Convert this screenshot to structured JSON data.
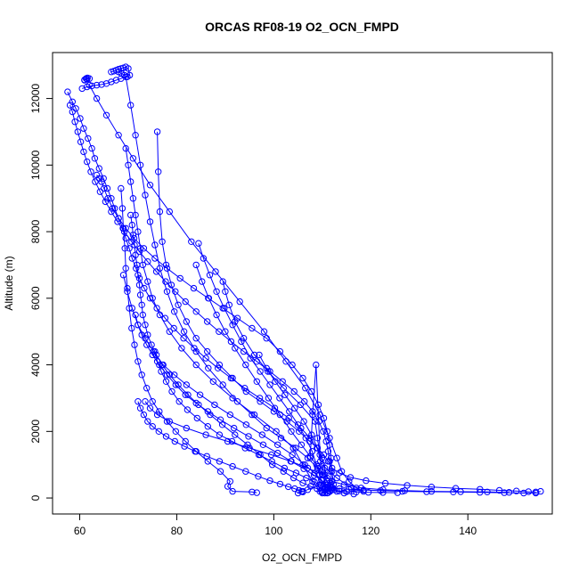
{
  "chart_data": {
    "type": "scatter",
    "title": "ORCAS RF08-19 O2_OCN_FMPD",
    "xlabel": "O2_OCN_FMPD",
    "ylabel": "Altitude (m)",
    "xlim": [
      54.4,
      157.4
    ],
    "ylim": [
      -480,
      13380
    ],
    "x_ticks": [
      60,
      80,
      100,
      120,
      140
    ],
    "y_ticks": [
      0,
      2000,
      4000,
      6000,
      8000,
      10000,
      12000
    ],
    "grid": false,
    "marker": "open-circle",
    "connect_points": true,
    "colors": {
      "series": "#0000ff",
      "axes": "#000000",
      "background": "#ffffff"
    },
    "series": [
      {
        "x": [
          57.5,
          58.5,
          59.2,
          60.1,
          60.8,
          61.7,
          62.5,
          63.1,
          64.0,
          64.9,
          65.7,
          66.5,
          67.2,
          68.0,
          68.9,
          69.5,
          70.2,
          70.8,
          71.6,
          72.3,
          73.3,
          74.5,
          75.9,
          77.6,
          79.4,
          81.4,
          83.6,
          86.0,
          88.5,
          91.2,
          94.0,
          97.1,
          100.2,
          103.1,
          105.6,
          107.5,
          108.9,
          109.9,
          110.5,
          111.0
        ],
        "y": [
          12200,
          11900,
          11700,
          11400,
          11100,
          10800,
          10500,
          10200,
          9900,
          9600,
          9300,
          9000,
          8700,
          8400,
          8100,
          7800,
          7500,
          7200,
          6900,
          6600,
          6300,
          6000,
          5700,
          5400,
          5100,
          4800,
          4500,
          4200,
          3900,
          3600,
          3300,
          3000,
          2700,
          2400,
          2100,
          1800,
          1500,
          1200,
          900,
          600
        ]
      },
      {
        "x": [
          110.2,
          111.0,
          112.0,
          113.5,
          115.5,
          118.5,
          122.0,
          126.5,
          131.5,
          137.0,
          142.5,
          147.5,
          151.5,
          154.0,
          155.0
        ],
        "y": [
          350,
          320,
          300,
          280,
          260,
          240,
          220,
          200,
          190,
          180,
          170,
          160,
          150,
          150,
          200
        ]
      },
      {
        "x": [
          73.5,
          74.5,
          76.0,
          78.5,
          82.0,
          86.0,
          90.5,
          95.0,
          99.5,
          103.5,
          107.0,
          110.0,
          112.0,
          111.0,
          112.0,
          110.5,
          111.5,
          110.0,
          111.2,
          110.0,
          111.0,
          110.5,
          109.5,
          108.0,
          106.0,
          104.0,
          100.5,
          96.0,
          91.5,
          87.5,
          84.0,
          81.0,
          78.5,
          76.5,
          75.0,
          74.0,
          73.0,
          72.5,
          72.0,
          71.5,
          71.0,
          70.5,
          70.0,
          69.5
        ],
        "y": [
          2900,
          2700,
          2500,
          2300,
          2100,
          1900,
          1700,
          1500,
          1300,
          1100,
          900,
          700,
          500,
          400,
          300,
          250,
          200,
          180,
          160,
          150,
          150,
          150,
          200,
          500,
          1000,
          1500,
          2000,
          2500,
          3000,
          3500,
          4000,
          4500,
          5000,
          5500,
          6000,
          6500,
          7000,
          7500,
          8000,
          8500,
          9000,
          9500,
          10000,
          10500
        ]
      },
      {
        "x": [
          62.0,
          63.5,
          65.5,
          68.0,
          71.0,
          74.5,
          78.5,
          83.0,
          88.0,
          93.0,
          98.0,
          102.5,
          106.5,
          109.5,
          111.5,
          113.0,
          114.0,
          115.5,
          117.0,
          118.5,
          116.0,
          113.0,
          110.0
        ],
        "y": [
          12400,
          12000,
          11500,
          10900,
          10200,
          9400,
          8600,
          7700,
          6800,
          5900,
          5000,
          4100,
          3300,
          2500,
          1800,
          1200,
          800,
          500,
          300,
          200,
          300,
          600,
          1000
        ]
      },
      {
        "x": [
          60.5,
          61.5,
          62.5,
          63.5,
          64.5,
          65.5,
          66.5,
          67.5,
          68.5,
          69.5,
          70.5,
          71.5,
          72.5,
          73.5,
          74.5,
          75.5,
          76.5,
          78.0,
          79.5,
          81.5,
          84.0,
          86.5,
          89.5,
          92.5,
          95.5,
          98.5,
          101.5,
          104.5,
          107.0,
          109.0,
          110.5,
          112.0,
          114.5,
          118.0,
          122.5,
          127.0,
          132.5,
          138.5,
          144.0,
          148.5
        ],
        "y": [
          12300,
          12350,
          12380,
          12400,
          12420,
          12450,
          12500,
          12550,
          12600,
          12650,
          11800,
          10900,
          10000,
          9100,
          8300,
          7600,
          6900,
          6200,
          5600,
          5000,
          4400,
          3900,
          3400,
          2900,
          2500,
          2100,
          1800,
          1500,
          1200,
          900,
          700,
          500,
          400,
          300,
          250,
          220,
          200,
          190,
          180,
          170
        ]
      },
      {
        "x": [
          66.5,
          67.0,
          67.5,
          68.0,
          68.5,
          69.0,
          69.5,
          70.0,
          70.3,
          69.8,
          69.2,
          68.6,
          68.0
        ],
        "y": [
          12800,
          12820,
          12850,
          12880,
          12900,
          12920,
          12950,
          12900,
          12700,
          12650,
          12700,
          12750,
          12800
        ]
      },
      {
        "x": [
          61.0,
          61.3,
          61.6,
          62.0,
          61.5,
          61.0
        ],
        "y": [
          12550,
          12600,
          12620,
          12600,
          12580,
          12560
        ]
      },
      {
        "x": [
          58.0,
          58.5,
          59.0,
          59.6,
          60.2,
          60.8,
          61.5,
          62.3,
          63.2,
          64.2,
          65.3,
          66.5,
          67.8,
          69.2,
          70.7,
          72.3,
          74.0,
          75.8,
          77.7,
          79.7,
          81.8,
          84.0,
          86.3,
          88.7,
          91.2,
          93.8,
          96.5,
          99.2,
          101.8,
          104.2,
          106.3,
          108.0,
          109.3,
          110.2,
          110.8,
          111.2,
          111.5,
          111.7,
          112.0,
          112.2
        ],
        "y": [
          11800,
          11600,
          11300,
          11000,
          10700,
          10400,
          10100,
          9800,
          9500,
          9200,
          8900,
          8600,
          8300,
          8000,
          7700,
          7400,
          7100,
          6800,
          6500,
          6200,
          5900,
          5600,
          5300,
          5000,
          4700,
          4400,
          4100,
          3800,
          3500,
          3200,
          2900,
          2600,
          2300,
          2000,
          1700,
          1400,
          1100,
          800,
          500,
          300
        ]
      },
      {
        "x": [
          70.5,
          70.8,
          71.0,
          71.3,
          71.5,
          71.8,
          72.0,
          72.3,
          72.5,
          72.8,
          73.0,
          73.5,
          74.0,
          74.8,
          75.8,
          77.0,
          78.5,
          80.3,
          82.3,
          84.5,
          86.9,
          89.4,
          92.0,
          94.6,
          97.2,
          99.7,
          102.0,
          104.1,
          106.0,
          107.6,
          108.9,
          109.8
        ],
        "y": [
          8500,
          8200,
          7900,
          7600,
          7300,
          7000,
          6700,
          6400,
          6100,
          5800,
          5500,
          5200,
          4900,
          4600,
          4300,
          4000,
          3700,
          3400,
          3100,
          2800,
          2500,
          2200,
          1900,
          1600,
          1300,
          1000,
          800,
          600,
          450,
          350,
          280,
          220
        ]
      },
      {
        "x": [
          76.0,
          76.2,
          76.5,
          77.0,
          77.8,
          78.9,
          80.3,
          82.0,
          84.0,
          86.3,
          88.8,
          91.5,
          94.3,
          97.2,
          100.0,
          102.7,
          105.2,
          107.4,
          109.0,
          110.3,
          111.2,
          112.0,
          113.5,
          115.8,
          119.0,
          123.0,
          127.5,
          132.5,
          137.5,
          142.5,
          146.5,
          150.0,
          152.5,
          154.0
        ],
        "y": [
          11000,
          9800,
          8600,
          7700,
          7000,
          6400,
          5800,
          5300,
          4800,
          4400,
          4000,
          3600,
          3200,
          2900,
          2600,
          2300,
          2000,
          1700,
          1500,
          1300,
          1100,
          900,
          750,
          620,
          520,
          440,
          380,
          330,
          290,
          260,
          230,
          210,
          190,
          180
        ]
      },
      {
        "x": [
          68.5,
          68.8,
          69.0,
          69.3,
          69.5,
          69.8,
          70.2,
          70.7,
          71.3,
          72.0,
          72.8,
          73.8,
          75.0,
          76.4,
          78.0,
          79.8,
          81.8,
          84.0,
          86.4,
          89.0,
          91.0,
          90.5,
          91.5,
          95.5,
          96.5
        ],
        "y": [
          9300,
          8700,
          8100,
          7500,
          6900,
          6300,
          5700,
          5100,
          4600,
          4100,
          3700,
          3300,
          2900,
          2600,
          2300,
          2000,
          1700,
          1400,
          1100,
          800,
          500,
          350,
          200,
          180,
          160
        ]
      },
      {
        "x": [
          63.5,
          64.0,
          64.5,
          65.0,
          65.8,
          66.8,
          68.0,
          69.5,
          71.2,
          73.2,
          75.5,
          78.0,
          80.7,
          83.5,
          86.5,
          89.5,
          92.5,
          95.5,
          98.5,
          101.3,
          103.8,
          106.0,
          107.8,
          109.2,
          110.3,
          111.0,
          111.5,
          111.8,
          112.0,
          112.3
        ],
        "y": [
          9700,
          9600,
          9500,
          9300,
          9000,
          8700,
          8400,
          8100,
          7800,
          7500,
          7200,
          6900,
          6600,
          6300,
          6000,
          5700,
          5400,
          5100,
          4800,
          4400,
          4000,
          3600,
          3200,
          2800,
          2400,
          2000,
          1600,
          1200,
          800,
          400
        ]
      },
      {
        "x": [
          69.0,
          69.8,
          70.8,
          72.0,
          73.5,
          75.2,
          77.2,
          79.5,
          82.0,
          84.8,
          87.8,
          91.0,
          94.3,
          97.6,
          100.8,
          103.8,
          106.4,
          108.4,
          109.8,
          110.6,
          111.0,
          109.5,
          107.0,
          105.0,
          106.0
        ],
        "y": [
          6700,
          6200,
          5700,
          5200,
          4800,
          4400,
          4000,
          3700,
          3400,
          3100,
          2800,
          2500,
          2200,
          1900,
          1600,
          1300,
          1000,
          750,
          550,
          400,
          300,
          400,
          250,
          150,
          200
        ]
      },
      {
        "x": [
          84.5,
          85.5,
          86.8,
          88.2,
          89.8,
          91.5,
          93.3,
          95.2,
          97.2,
          99.2,
          101.2,
          103.2,
          105.0,
          106.6,
          107.9,
          108.8,
          109.4,
          109.8
        ],
        "y": [
          7650,
          7200,
          6700,
          6200,
          5700,
          5200,
          4700,
          4200,
          3800,
          3400,
          3000,
          2600,
          2200,
          1800,
          1400,
          1000,
          700,
          400
        ]
      },
      {
        "x": [
          89.5,
          90.0,
          90.8,
          92.0,
          93.8,
          96.0,
          98.8,
          102.0,
          105.5,
          108.5,
          109.0,
          109.5,
          110.0
        ],
        "y": [
          6500,
          6200,
          5800,
          5300,
          4800,
          4300,
          3800,
          3300,
          2800,
          2300,
          1800,
          1300,
          800
        ]
      },
      {
        "x": [
          97.0,
          98.5,
          100.3,
          102.3,
          104.3,
          106.2,
          107.8,
          109.0,
          109.6,
          108.7,
          108.0,
          107.5
        ],
        "y": [
          4300,
          3900,
          3500,
          3100,
          2700,
          2300,
          1900,
          1500,
          1100,
          4000,
          2500,
          1200
        ]
      },
      {
        "x": [
          72.0,
          72.5,
          73.2,
          74.0,
          75.0,
          76.3,
          77.8,
          79.6,
          81.6,
          83.8,
          86.2,
          88.8,
          91.5,
          94.2,
          96.8,
          99.2,
          101.3,
          103.0,
          104.3,
          105.2,
          105.7,
          106.0
        ],
        "y": [
          2900,
          2700,
          2500,
          2300,
          2150,
          2000,
          1850,
          1700,
          1550,
          1400,
          1250,
          1100,
          950,
          800,
          650,
          520,
          420,
          340,
          280,
          230,
          200,
          180
        ]
      },
      {
        "x": [
          84.0,
          85.2,
          86.6,
          88.2,
          90.0,
          92.0,
          94.2,
          96.5,
          98.9,
          101.3,
          103.6,
          105.7,
          107.5,
          109.0,
          110.2,
          111.0,
          111.6,
          112.0,
          113.0,
          114.5,
          116.5
        ],
        "y": [
          7000,
          6500,
          6000,
          5500,
          5000,
          4500,
          4000,
          3500,
          3000,
          2500,
          2000,
          1600,
          1250,
          950,
          700,
          500,
          350,
          250,
          200,
          150,
          120
        ]
      },
      {
        "x": [
          75.5,
          76.0,
          76.8,
          77.8,
          79.0,
          80.5,
          82.2,
          84.2,
          86.4,
          88.8,
          91.4,
          94.1,
          96.9,
          99.6,
          102.2,
          104.6,
          106.7,
          108.4,
          109.7,
          110.6,
          111.2,
          111.6
        ],
        "y": [
          4400,
          4100,
          3800,
          3500,
          3200,
          2900,
          2650,
          2400,
          2150,
          1900,
          1700,
          1500,
          1300,
          1100,
          900,
          750,
          600,
          480,
          380,
          300,
          240,
          200
        ]
      },
      {
        "x": [
          71.5,
          72.0,
          72.8,
          73.8,
          75.0,
          76.4,
          78.0,
          79.8,
          81.8,
          84.0,
          86.4,
          89.0,
          91.8,
          94.8,
          97.8,
          100.8,
          103.6,
          106.2,
          108.3,
          109.9,
          111.0,
          111.8,
          112.5,
          113.5,
          115.0,
          117.0,
          119.5,
          122.5,
          125.5
        ],
        "y": [
          5500,
          5200,
          4900,
          4600,
          4300,
          4000,
          3700,
          3400,
          3100,
          2850,
          2600,
          2350,
          2100,
          1850,
          1600,
          1350,
          1100,
          880,
          680,
          520,
          400,
          310,
          250,
          210,
          190,
          180,
          170,
          165,
          160
        ]
      }
    ]
  }
}
